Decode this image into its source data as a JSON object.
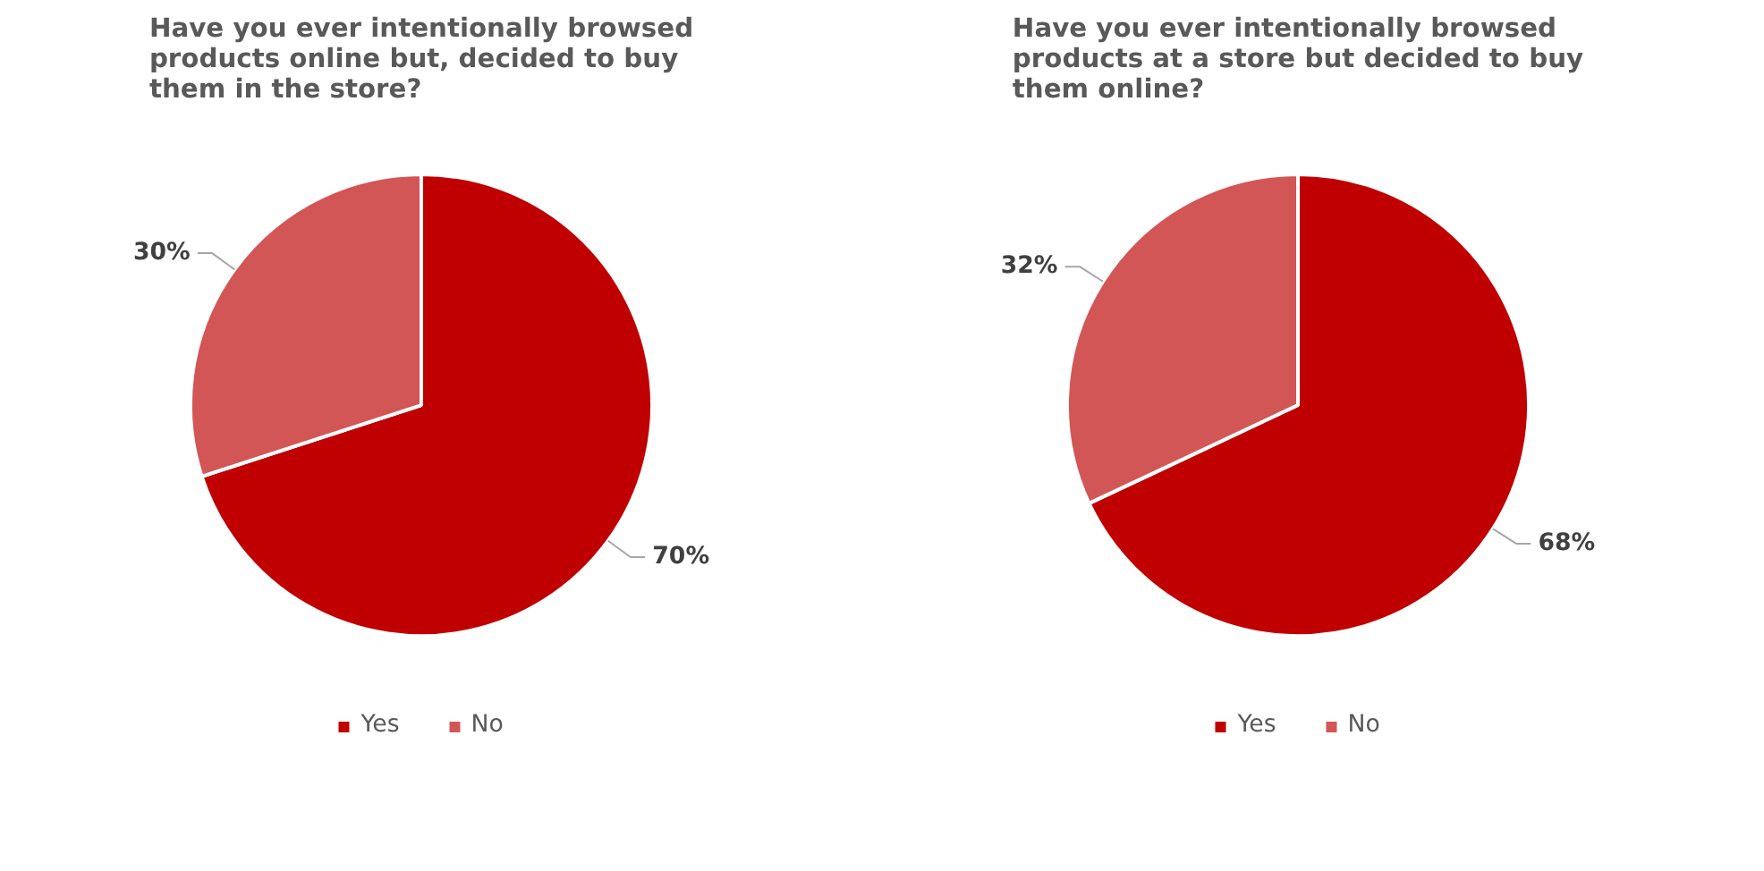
{
  "chart_data": [
    {
      "type": "pie",
      "title": "Have you ever intentionally browsed products online but, decided to buy them in the store?",
      "categories": [
        "Yes",
        "No"
      ],
      "values": [
        70,
        30
      ],
      "colors": [
        "#c00000",
        "#d35656"
      ],
      "value_labels": [
        "70%",
        "30%"
      ],
      "legend": "bottom"
    },
    {
      "type": "pie",
      "title": "Have you ever intentionally browsed products at a store but decided to buy them online?",
      "categories": [
        "Yes",
        "No"
      ],
      "values": [
        68,
        32
      ],
      "colors": [
        "#c00000",
        "#d35656"
      ],
      "value_labels": [
        "68%",
        "32%"
      ],
      "legend": "bottom"
    }
  ]
}
